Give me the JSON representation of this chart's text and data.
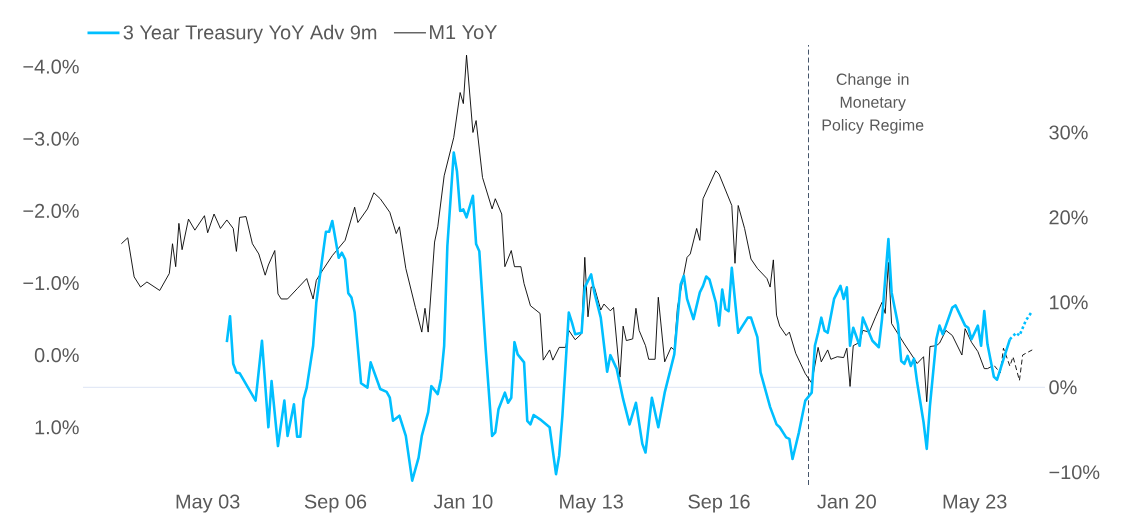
{
  "chart_data": {
    "type": "line",
    "series": [
      {
        "name": "3 Year Treasury YoY Adv 9m",
        "color": "#00bfff",
        "axis": "y",
        "line_style": "solid",
        "x": [
          "2003-11",
          "2003-12",
          "2004-01",
          "2004-02",
          "2004-03",
          "2004-08",
          "2004-10",
          "2004-12",
          "2005-01",
          "2005-03",
          "2005-05",
          "2005-06",
          "2005-08",
          "2005-09",
          "2005-10",
          "2005-11",
          "2005-12",
          "2006-02",
          "2006-03",
          "2006-06",
          "2006-07",
          "2006-08",
          "2006-10",
          "2006-11",
          "2006-12",
          "2007-01",
          "2007-02",
          "2007-03",
          "2007-05",
          "2007-07",
          "2007-08",
          "2007-11",
          "2008-01",
          "2008-02",
          "2008-03",
          "2008-05",
          "2008-07",
          "2008-09",
          "2008-11",
          "2008-12",
          "2009-02",
          "2009-03",
          "2009-05",
          "2009-06",
          "2009-07",
          "2009-08",
          "2009-10",
          "2009-11",
          "2009-12",
          "2010-01",
          "2010-02",
          "2010-04",
          "2010-05",
          "2010-06",
          "2010-08",
          "2010-10",
          "2010-11",
          "2010-12",
          "2011-02",
          "2011-03",
          "2011-04",
          "2011-05",
          "2011-06",
          "2011-08",
          "2011-09",
          "2011-10",
          "2011-11",
          "2012-01",
          "2012-04",
          "2012-06",
          "2012-07",
          "2012-08",
          "2012-10",
          "2012-11",
          "2012-12",
          "2013-02",
          "2013-03",
          "2013-05",
          "2013-06",
          "2013-08",
          "2013-10",
          "2013-11",
          "2014-01",
          "2014-03",
          "2014-05",
          "2014-07",
          "2014-09",
          "2014-10",
          "2014-12",
          "2015-02",
          "2015-04",
          "2015-07",
          "2015-09",
          "2015-10",
          "2015-11",
          "2016-01",
          "2016-03",
          "2016-04",
          "2016-05",
          "2016-06",
          "2016-08",
          "2016-09",
          "2016-10",
          "2016-11",
          "2016-12",
          "2017-01",
          "2017-03",
          "2017-06",
          "2017-07",
          "2017-09",
          "2017-10",
          "2018-01",
          "2018-03",
          "2018-04",
          "2018-06",
          "2018-07",
          "2018-08",
          "2018-10",
          "2018-12",
          "2019-02",
          "2019-03",
          "2019-04",
          "2019-05",
          "2019-06",
          "2019-07",
          "2019-09",
          "2019-11",
          "2019-12",
          "2020-01",
          "2020-02",
          "2020-03",
          "2020-05",
          "2020-06",
          "2020-09",
          "2020-11",
          "2020-12",
          "2021-02",
          "2021-03",
          "2021-05",
          "2021-06",
          "2021-07",
          "2021-08",
          "2021-09",
          "2021-10",
          "2021-11",
          "2022-01",
          "2022-02",
          "2022-03",
          "2022-05",
          "2022-06",
          "2022-07",
          "2022-08",
          "2022-10",
          "2022-11",
          "2023-02",
          "2023-03",
          "2023-04",
          "2023-06",
          "2023-07",
          "2023-08",
          "2023-09",
          "2023-11",
          "2023-12",
          "2024-02",
          "2024-04"
        ],
        "values": [
          -0.18,
          -0.54,
          0.12,
          0.24,
          0.25,
          0.63,
          -0.2,
          1.0,
          0.36,
          1.26,
          0.63,
          1.12,
          0.68,
          1.13,
          1.13,
          0.61,
          0.45,
          -0.13,
          -0.73,
          -1.71,
          -1.71,
          -1.86,
          -1.35,
          -1.42,
          -1.33,
          -0.86,
          -0.8,
          -0.59,
          0.39,
          0.45,
          0.1,
          0.47,
          0.51,
          0.59,
          0.91,
          0.84,
          1.12,
          1.74,
          1.42,
          1.12,
          0.79,
          0.43,
          0.54,
          0.33,
          -0.13,
          -1.51,
          -2.81,
          -2.55,
          -2.0,
          -2.02,
          -1.91,
          -2.21,
          -1.54,
          -1.44,
          -0.08,
          1.12,
          1.07,
          0.75,
          0.52,
          0.66,
          0.59,
          -0.18,
          -0.01,
          0.1,
          0.91,
          0.96,
          0.83,
          0.89,
          1.0,
          1.65,
          1.39,
          0.84,
          -0.59,
          -0.45,
          -0.29,
          -0.31,
          -0.94,
          -1.12,
          -0.87,
          -0.52,
          0.23,
          0.0,
          0.19,
          0.61,
          0.96,
          0.66,
          1.23,
          1.35,
          0.59,
          1.0,
          0.52,
          -0.01,
          -0.98,
          -1.1,
          -0.78,
          -0.5,
          -0.87,
          -0.96,
          -1.09,
          -1.05,
          -0.73,
          -0.41,
          -0.91,
          -0.64,
          -0.61,
          -1.21,
          -0.31,
          -0.52,
          -0.52,
          -0.25,
          0.24,
          0.72,
          0.96,
          1.0,
          1.14,
          1.16,
          1.44,
          1.07,
          0.63,
          0.52,
          -0.13,
          -0.31,
          -0.52,
          -0.34,
          -0.31,
          -0.78,
          -0.96,
          -0.78,
          -0.94,
          -0.13,
          -0.38,
          -0.13,
          -0.52,
          -0.2,
          -0.11,
          -0.5,
          -1.61,
          -0.87,
          -0.43,
          0.08,
          0.12,
          0.01,
          0.15,
          0.05,
          0.38,
          0.93,
          1.3,
          0.7,
          -0.22,
          -0.41,
          -0.29,
          -0.41,
          -0.66,
          -0.69,
          -0.41,
          -0.38,
          -0.22,
          -0.41,
          -0.13,
          -0.61,
          -0.15,
          0.3,
          0.34,
          0.06,
          -0.22
        ]
      },
      {
        "name": "M1 YoY",
        "color": "#000000",
        "axis": "y2",
        "line_style": "solid",
        "x": [
          "2001-02",
          "2001-04",
          "2001-06",
          "2001-08",
          "2001-10",
          "2002-02",
          "2002-05",
          "2002-06",
          "2002-07",
          "2002-08",
          "2002-09",
          "2002-11",
          "2003-01",
          "2003-04",
          "2003-05",
          "2003-07",
          "2003-09",
          "2003-11",
          "2004-01",
          "2004-02",
          "2004-03",
          "2004-05",
          "2004-07",
          "2004-09",
          "2004-11",
          "2004-12",
          "2005-02",
          "2005-03",
          "2005-04",
          "2005-06",
          "2005-09",
          "2005-12",
          "2006-02",
          "2006-03",
          "2006-05",
          "2006-08",
          "2006-12",
          "2007-03",
          "2007-04",
          "2007-07",
          "2007-09",
          "2007-11",
          "2008-02",
          "2008-04",
          "2008-05",
          "2008-07",
          "2008-10",
          "2008-12",
          "2009-01",
          "2009-02",
          "2009-04",
          "2009-05",
          "2009-07",
          "2009-10",
          "2009-12",
          "2010-01",
          "2010-02",
          "2010-04",
          "2010-05",
          "2010-07",
          "2010-10",
          "2010-11",
          "2011-01",
          "2011-02",
          "2011-04",
          "2011-05",
          "2011-07",
          "2011-08",
          "2011-10",
          "2012-01",
          "2012-02",
          "2012-04",
          "2012-05",
          "2012-07",
          "2012-09",
          "2012-10",
          "2012-12",
          "2013-02",
          "2013-03",
          "2013-04",
          "2013-05",
          "2013-06",
          "2013-08",
          "2013-09",
          "2013-11",
          "2013-12",
          "2014-02",
          "2014-03",
          "2014-04",
          "2014-06",
          "2014-07",
          "2014-08",
          "2014-10",
          "2014-11",
          "2015-01",
          "2015-02",
          "2015-04",
          "2015-06",
          "2015-07",
          "2015-08",
          "2015-11",
          "2015-12",
          "2016-02",
          "2016-03",
          "2016-04",
          "2016-08",
          "2016-09",
          "2017-01",
          "2017-02",
          "2017-03",
          "2017-05",
          "2017-07",
          "2017-09",
          "2017-12",
          "2018-01",
          "2018-02",
          "2018-03",
          "2018-04",
          "2018-06",
          "2018-07",
          "2018-09",
          "2018-12",
          "2019-02",
          "2019-04",
          "2019-05",
          "2019-07",
          "2019-08",
          "2019-10",
          "2019-12",
          "2020-01",
          "2020-02",
          "2020-03",
          "2020-05",
          "2020-06",
          "2020-08",
          "2020-10",
          "2020-12",
          "2021-01",
          "2021-02",
          "2021-03",
          "2021-05",
          "2021-07",
          "2021-10",
          "2021-11",
          "2022-01",
          "2022-02",
          "2022-03",
          "2022-05",
          "2022-06",
          "2022-08",
          "2022-10",
          "2023-01",
          "2023-02",
          "2023-04",
          "2023-06",
          "2023-08",
          "2023-09"
        ],
        "values": [
          16.9,
          17.6,
          13.0,
          11.8,
          12.4,
          11.4,
          13.4,
          16.9,
          14.2,
          19.3,
          16.2,
          19.8,
          18.5,
          20.2,
          18.2,
          20.4,
          18.7,
          19.7,
          18.7,
          16.0,
          20.0,
          20.1,
          16.9,
          15.7,
          13.2,
          14.4,
          16.1,
          11.0,
          10.4,
          10.4,
          11.6,
          12.8,
          10.4,
          12.6,
          13.8,
          15.5,
          17.3,
          21.2,
          19.4,
          21.0,
          22.9,
          22.2,
          20.6,
          18.1,
          18.9,
          14.0,
          9.4,
          6.5,
          9.3,
          6.5,
          17.1,
          18.9,
          24.9,
          29.4,
          34.7,
          33.4,
          39.1,
          30.0,
          31.4,
          24.7,
          21.0,
          22.2,
          20.4,
          14.2,
          16.1,
          14.2,
          14.2,
          12.2,
          9.6,
          8.7,
          3.2,
          4.4,
          3.2,
          4.7,
          4.7,
          6.7,
          5.6,
          6.3,
          15.3,
          8.3,
          11.8,
          11.8,
          9.1,
          9.8,
          9.0,
          9.4,
          1.2,
          7.2,
          5.5,
          5.7,
          9.3,
          6.7,
          4.9,
          3.3,
          3.3,
          10.6,
          3.0,
          4.7,
          4.4,
          9.4,
          15.3,
          15.7,
          18.7,
          17.3,
          22.2,
          25.5,
          25.1,
          21.4,
          14.6,
          21.4,
          18.7,
          15.1,
          14.0,
          12.8,
          11.8,
          15.0,
          8.5,
          7.2,
          6.1,
          6.5,
          4.0,
          1.6,
          0.5,
          4.7,
          3.0,
          4.4,
          3.3,
          3.6,
          3.5,
          4.6,
          0.1,
          4.9,
          5.3,
          6.7,
          6.5,
          8.3,
          10.0,
          8.7,
          14.7,
          7.5,
          6.3,
          5.1,
          3.4,
          2.8,
          3.6,
          -1.7,
          4.8,
          4.9,
          5.2,
          6.7,
          6.1,
          3.8,
          6.9,
          5.3,
          4.2,
          2.2,
          2.2
        ]
      },
      {
        "color": "#00bfff",
        "axis": "y",
        "line_style": "dotted",
        "x": [
          "2024-04",
          "2024-06",
          "2024-07",
          "2024-09",
          "2024-11"
        ],
        "values": [
          -0.22,
          -0.31,
          -0.27,
          -0.48,
          -0.61
        ]
      },
      {
        "color": "#000000",
        "axis": "y2",
        "line_style": "dashed",
        "x": [
          "2023-09",
          "2023-11",
          "2024-01",
          "2024-02",
          "2024-04",
          "2024-05",
          "2024-07",
          "2024-08",
          "2024-11"
        ],
        "values": [
          2.2,
          2.6,
          1.7,
          4.6,
          2.5,
          3.6,
          0.8,
          3.8,
          4.4
        ]
      }
    ],
    "xlim": [
      "2000-02",
      "2025-03"
    ],
    "xticks": [
      {
        "value": "2003-05",
        "label": "May 03"
      },
      {
        "value": "2006-09",
        "label": "Sep 06"
      },
      {
        "value": "2010-01",
        "label": "Jan 10"
      },
      {
        "value": "2013-05",
        "label": "May 13"
      },
      {
        "value": "2016-09",
        "label": "Sep 16"
      },
      {
        "value": "2020-01",
        "label": "Jan 20"
      },
      {
        "value": "2023-05",
        "label": "May 23"
      }
    ],
    "ylim": [
      1.8,
      -4.3
    ],
    "yticks": [
      {
        "value": -4,
        "label": "−4.0%"
      },
      {
        "value": -3,
        "label": "−3.0%"
      },
      {
        "value": -2,
        "label": "−2.0%"
      },
      {
        "value": -1,
        "label": "−1.0%"
      },
      {
        "value": 0,
        "label": "0.0%"
      },
      {
        "value": 1,
        "label": "1.0%"
      }
    ],
    "y2lim": [
      -11.5,
      40.3
    ],
    "y2ticks": [
      {
        "value": -10,
        "label": "−10%"
      },
      {
        "value": 0,
        "label": "0%"
      },
      {
        "value": 10,
        "label": "10%"
      },
      {
        "value": 20,
        "label": "20%"
      },
      {
        "value": 30,
        "label": "30%"
      }
    ],
    "ref_lines": [
      {
        "axis": "y2",
        "value": 0,
        "color": "#e3e9f6",
        "line_style": "solid"
      },
      {
        "axis": "x",
        "value": "2019-01",
        "label": "Change in Monetary Policy Regime",
        "color": "#44546a",
        "line_style": "dashed"
      }
    ],
    "legend": "top left",
    "grid": false,
    "marker": "none"
  }
}
